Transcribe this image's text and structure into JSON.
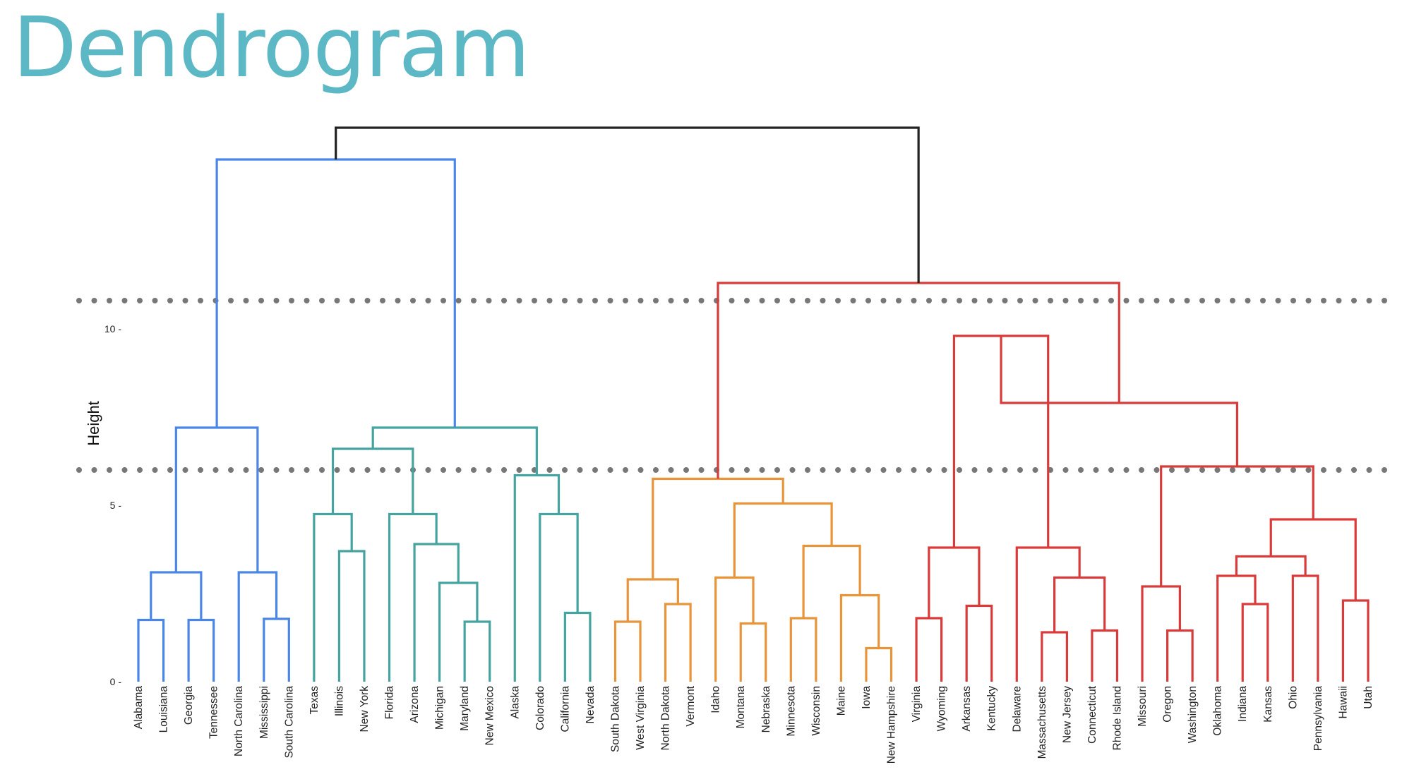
{
  "slide": {
    "title": "Dendrogram",
    "title_color": "#5bb8c4"
  },
  "chart_data": {
    "type": "dendrogram",
    "ylabel": "Height",
    "yticks": [
      0,
      5,
      10
    ],
    "ylim": [
      0,
      12
    ],
    "cut_lines": [
      10.8,
      6.0
    ],
    "cut_line_color": "#777777",
    "leaves": [
      "Alabama",
      "Louisiana",
      "Georgia",
      "Tennessee",
      "North Carolina",
      "Mississippi",
      "South Carolina",
      "Texas",
      "Illinois",
      "New York",
      "Florida",
      "Arizona",
      "Michigan",
      "Maryland",
      "New Mexico",
      "Alaska",
      "Colorado",
      "California",
      "Nevada",
      "South Dakota",
      "West Virginia",
      "North Dakota",
      "Vermont",
      "Idaho",
      "Montana",
      "Nebraska",
      "Minnesota",
      "Wisconsin",
      "Maine",
      "Iowa",
      "New Hampshire",
      "Virginia",
      "Wyoming",
      "Arkansas",
      "Kentucky",
      "Delaware",
      "Massachusetts",
      "New Jersey",
      "Connecticut",
      "Rhode Island",
      "Missouri",
      "Oregon",
      "Washington",
      "Oklahoma",
      "Indiana",
      "Kansas",
      "Ohio",
      "Pennsylvania",
      "Hawaii",
      "Utah"
    ],
    "cluster_colors": [
      "#4a86e8",
      "#45a3a0",
      "#e8943a",
      "#d93b3b"
    ],
    "root_color": "#222222",
    "merges": [
      {
        "a": "Alabama",
        "b": "Louisiana",
        "h": 1.75,
        "c": 0
      },
      {
        "a": "Georgia",
        "b": "Tennessee",
        "h": 1.75,
        "c": 0
      },
      {
        "a": 1,
        "b": 2,
        "h": 3.1,
        "c": 0
      },
      {
        "a": "Mississippi",
        "b": "South Carolina",
        "h": 1.78,
        "c": 0
      },
      {
        "a": "North Carolina",
        "b": 4,
        "h": 3.1,
        "c": 0
      },
      {
        "a": 3,
        "b": 5,
        "h": 7.2,
        "c": 0
      },
      {
        "a": "Illinois",
        "b": "New York",
        "h": 3.7,
        "c": 1
      },
      {
        "a": "Texas",
        "b": 7,
        "h": 4.75,
        "c": 1
      },
      {
        "a": "Maryland",
        "b": "New Mexico",
        "h": 1.7,
        "c": 1
      },
      {
        "a": "Michigan",
        "b": 9,
        "h": 2.8,
        "c": 1
      },
      {
        "a": "Arizona",
        "b": 10,
        "h": 3.9,
        "c": 1
      },
      {
        "a": "Florida",
        "b": 11,
        "h": 4.75,
        "c": 1
      },
      {
        "a": 8,
        "b": 12,
        "h": 6.6,
        "c": 1
      },
      {
        "a": "California",
        "b": "Nevada",
        "h": 1.95,
        "c": 1
      },
      {
        "a": "Colorado",
        "b": 14,
        "h": 4.75,
        "c": 1
      },
      {
        "a": "Alaska",
        "b": 15,
        "h": 5.85,
        "c": 1
      },
      {
        "a": 13,
        "b": 16,
        "h": 7.2,
        "c": 1
      },
      {
        "a": 6,
        "b": 17,
        "h": 14.8,
        "c": 0
      },
      {
        "a": "South Dakota",
        "b": "West Virginia",
        "h": 1.7,
        "c": 2
      },
      {
        "a": "North Dakota",
        "b": "Vermont",
        "h": 2.2,
        "c": 2
      },
      {
        "a": 19,
        "b": 20,
        "h": 2.9,
        "c": 2
      },
      {
        "a": "Montana",
        "b": "Nebraska",
        "h": 1.65,
        "c": 2
      },
      {
        "a": "Idaho",
        "b": 22,
        "h": 2.95,
        "c": 2
      },
      {
        "a": "Minnesota",
        "b": "Wisconsin",
        "h": 1.8,
        "c": 2
      },
      {
        "a": "Iowa",
        "b": "New Hampshire",
        "h": 0.95,
        "c": 2
      },
      {
        "a": "Maine",
        "b": 25,
        "h": 2.45,
        "c": 2
      },
      {
        "a": 24,
        "b": 26,
        "h": 3.85,
        "c": 2
      },
      {
        "a": 23,
        "b": 27,
        "h": 5.05,
        "c": 2
      },
      {
        "a": 21,
        "b": 28,
        "h": 5.75,
        "c": 2
      },
      {
        "a": "Virginia",
        "b": "Wyoming",
        "h": 1.8,
        "c": 3
      },
      {
        "a": "Arkansas",
        "b": "Kentucky",
        "h": 2.15,
        "c": 3
      },
      {
        "a": 30,
        "b": 31,
        "h": 3.8,
        "c": 3
      },
      {
        "a": "Massachusetts",
        "b": "New Jersey",
        "h": 1.4,
        "c": 3
      },
      {
        "a": "Connecticut",
        "b": "Rhode Island",
        "h": 1.45,
        "c": 3
      },
      {
        "a": 33,
        "b": 34,
        "h": 2.95,
        "c": 3
      },
      {
        "a": "Delaware",
        "b": 35,
        "h": 3.8,
        "c": 3
      },
      {
        "a": 32,
        "b": 36,
        "h": 9.8,
        "c": 3
      },
      {
        "a": "Oregon",
        "b": "Washington",
        "h": 1.45,
        "c": 3
      },
      {
        "a": "Missouri",
        "b": 38,
        "h": 2.7,
        "c": 3
      },
      {
        "a": "Indiana",
        "b": "Kansas",
        "h": 2.2,
        "c": 3
      },
      {
        "a": "Oklahoma",
        "b": 40,
        "h": 3.0,
        "c": 3
      },
      {
        "a": "Ohio",
        "b": "Pennsylvania",
        "h": 3.0,
        "c": 3
      },
      {
        "a": 41,
        "b": 42,
        "h": 3.55,
        "c": 3
      },
      {
        "a": "Hawaii",
        "b": "Utah",
        "h": 2.3,
        "c": 3
      },
      {
        "a": 43,
        "b": 44,
        "h": 4.6,
        "c": 3
      },
      {
        "a": 39,
        "b": 45,
        "h": 6.1,
        "c": 3
      },
      {
        "a": 37,
        "b": 46,
        "h": 7.9,
        "c": 3
      },
      {
        "a": 29,
        "b": 47,
        "h": 11.3,
        "c": 3
      },
      {
        "a": 18,
        "b": 48,
        "h": 15.7,
        "c": 4
      }
    ]
  }
}
